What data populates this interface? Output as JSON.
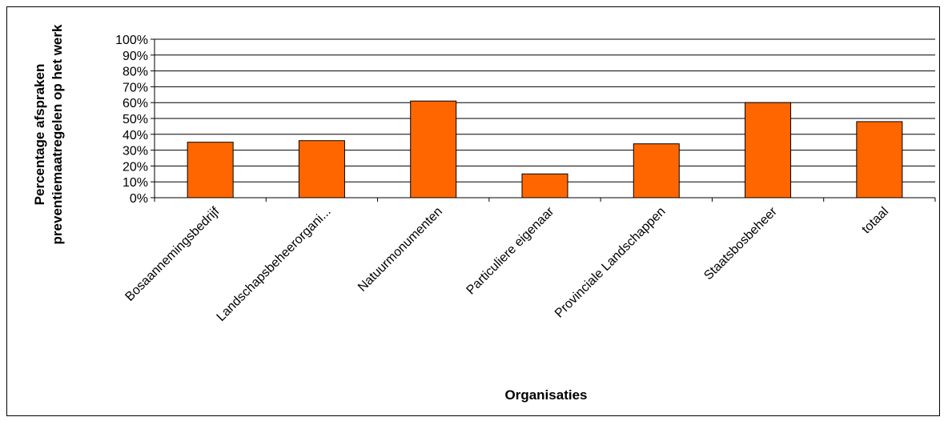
{
  "chart_data": {
    "type": "bar",
    "categories": [
      "Bosaannemingsbedrijf",
      "Landschapsbeheerorgani...",
      "Natuurmonumenten",
      "Particuliere eigenaar",
      "Provinciale Landschappen",
      "Staatsbosbeheer",
      "totaal"
    ],
    "values": [
      35,
      36,
      61,
      15,
      34,
      60,
      48
    ],
    "y_ticks": [
      "0%",
      "10%",
      "20%",
      "30%",
      "40%",
      "50%",
      "60%",
      "70%",
      "80%",
      "90%",
      "100%"
    ],
    "ylim": [
      0,
      100
    ],
    "xlabel": "Organisaties",
    "ylabel_lines": [
      "Percentage afspraken",
      "preventiemaatregelen op het werk"
    ],
    "grid": true,
    "bar_color": "#FF6600"
  }
}
